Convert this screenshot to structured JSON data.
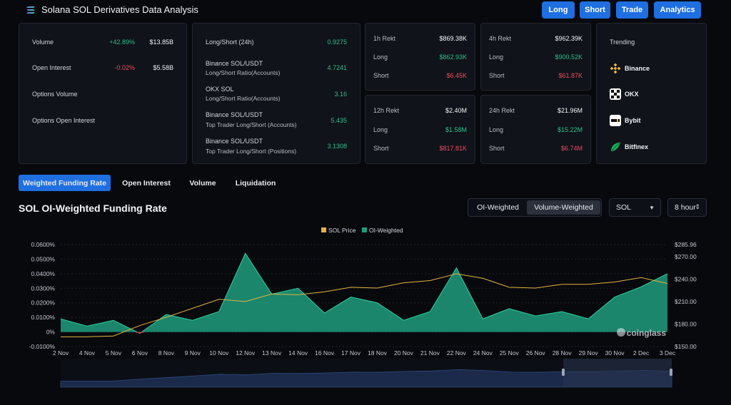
{
  "header": {
    "title": "Solana SOL Derivatives Data Analysis",
    "nav": [
      {
        "label": "Long"
      },
      {
        "label": "Short"
      },
      {
        "label": "Trade"
      },
      {
        "label": "Analytics"
      }
    ]
  },
  "overview": {
    "rows": [
      {
        "label": "Volume",
        "change": "+42.89%",
        "value": "$13.85B"
      },
      {
        "label": "Open Interest",
        "change": "-0.02%",
        "value": "$5.58B"
      },
      {
        "label": "Options Volume",
        "change": "",
        "value": ""
      },
      {
        "label": "Options Open Interest",
        "change": "",
        "value": ""
      }
    ]
  },
  "longshort": {
    "rows": [
      {
        "name": "Long/Short (24h)",
        "sub": "",
        "value": "0.9275"
      },
      {
        "name": "Binance SOL/USDT",
        "sub": "Long/Short Ratio(Accounts)",
        "value": "4.7241"
      },
      {
        "name": "OKX SOL",
        "sub": "Long/Short Ratio(Accounts)",
        "value": "3.16"
      },
      {
        "name": "Binance SOL/USDT",
        "sub": "Top Trader Long/Short (Accounts)",
        "value": "5.435"
      },
      {
        "name": "Binance SOL/USDT",
        "sub": "Top Trader Long/Short (Positions)",
        "value": "3.1308"
      }
    ]
  },
  "rekt": [
    {
      "period": "1h Rekt",
      "total": "$869.38K",
      "long_label": "Long",
      "long": "$862.93K",
      "short_label": "Short",
      "short": "$6.45K"
    },
    {
      "period": "4h Rekt",
      "total": "$962.39K",
      "long_label": "Long",
      "long": "$900.52K",
      "short_label": "Short",
      "short": "$61.87K"
    },
    {
      "period": "12h Rekt",
      "total": "$2.40M",
      "long_label": "Long",
      "long": "$1.58M",
      "short_label": "Short",
      "short": "$817.81K"
    },
    {
      "period": "24h Rekt",
      "total": "$21.96M",
      "long_label": "Long",
      "long": "$15.22M",
      "short_label": "Short",
      "short": "$6.74M"
    }
  ],
  "trending": {
    "title": "Trending",
    "items": [
      {
        "name": "Binance",
        "icon": "binance-icon",
        "color": "#f3ba2f"
      },
      {
        "name": "OKX",
        "icon": "okx-icon",
        "color": "#ffffff"
      },
      {
        "name": "Bybit",
        "icon": "bybit-icon",
        "color": "#ffffff"
      },
      {
        "name": "Bitfinex",
        "icon": "bitfinex-icon",
        "color": "#16b157"
      }
    ]
  },
  "tabs": [
    {
      "label": "Weighted Funding Rate"
    },
    {
      "label": "Open Interest"
    },
    {
      "label": "Volume"
    },
    {
      "label": "Liquidation"
    }
  ],
  "controls": {
    "oi_weighted": "OI-Weighted",
    "volume_weighted": "Volume-Weighted",
    "symbol": "SOL",
    "interval": "8 hour"
  },
  "colors": {
    "accent": "#1f6fe0",
    "positive": "#2fbf8a",
    "negative": "#ef4b5b",
    "area_fill": "#1f9c7e",
    "price_line": "#e3b341"
  },
  "chart_data": {
    "type": "area",
    "title": "SOL OI-Weighted Funding Rate",
    "watermark": "coinglass",
    "legend": [
      "SOL Price",
      "OI-Weighted"
    ],
    "legend_position": "top-center",
    "x": [
      "2 Nov",
      "4 Nov",
      "5 Nov",
      "6 Nov",
      "8 Nov",
      "9 Nov",
      "10 Nov",
      "12 Nov",
      "13 Nov",
      "14 Nov",
      "16 Nov",
      "17 Nov",
      "18 Nov",
      "20 Nov",
      "21 Nov",
      "22 Nov",
      "24 Nov",
      "25 Nov",
      "26 Nov",
      "28 Nov",
      "29 Nov",
      "30 Nov",
      "2 Dec",
      "3 Dec"
    ],
    "y_left_ticks": [
      "0.0600%",
      "0.0500%",
      "0.0400%",
      "0.0300%",
      "0.0200%",
      "0.0100%",
      "0%",
      "-0.0100%"
    ],
    "y_left_range": [
      -0.01,
      0.06
    ],
    "y_right_ticks": [
      "$285.96",
      "$270.00",
      "$240.00",
      "$210.00",
      "$180.00",
      "$150.00"
    ],
    "y_right_range": [
      150,
      285.96
    ],
    "grid": true,
    "series": [
      {
        "name": "OI-Weighted",
        "unit": "%",
        "values": [
          0.009,
          0.004,
          0.008,
          -0.001,
          0.012,
          0.008,
          0.014,
          0.054,
          0.026,
          0.03,
          0.013,
          0.024,
          0.02,
          0.008,
          0.014,
          0.044,
          0.009,
          0.016,
          0.011,
          0.014,
          0.009,
          0.024,
          0.031,
          0.04
        ]
      },
      {
        "name": "SOL Price",
        "unit": "USD",
        "values": [
          163,
          163,
          164,
          178,
          189,
          201,
          213,
          210,
          220,
          219,
          223,
          229,
          228,
          235,
          238,
          247,
          241,
          229,
          228,
          233,
          233,
          236,
          242,
          234
        ]
      }
    ]
  }
}
